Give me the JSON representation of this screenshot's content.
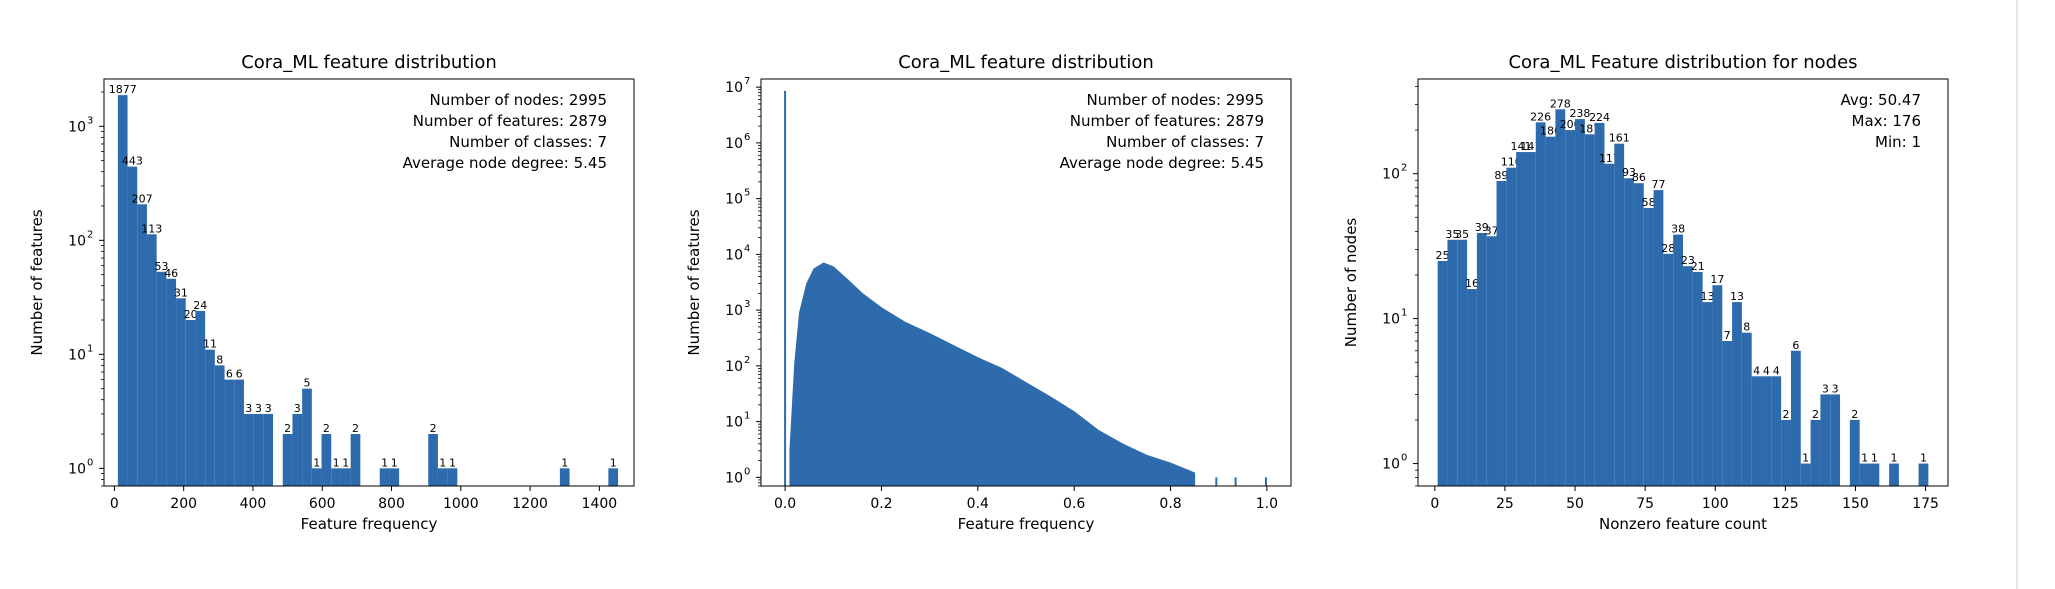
{
  "chart_data": [
    {
      "type": "bar",
      "title": "Cora_ML feature distribution",
      "xlabel": "Feature frequency",
      "ylabel": "Number of features",
      "yscale": "log",
      "xlim": [
        -30,
        1500
      ],
      "ylim": [
        0.7,
        2600
      ],
      "xticks": [
        "0",
        "200",
        "400",
        "600",
        "800",
        "1000",
        "1200",
        "1400"
      ],
      "xtick_values": [
        0,
        200,
        400,
        600,
        800,
        1000,
        1200,
        1400
      ],
      "yticks": [
        "10",
        "10",
        "10",
        "10"
      ],
      "ytick_exponents": [
        "0",
        "1",
        "2",
        "3"
      ],
      "ytick_values": [
        1,
        10,
        100,
        1000
      ],
      "bar_color": "#2e6bad",
      "stats": [
        "Number of nodes: 2995",
        "Number of features: 2879",
        "Number of classes: 7",
        "Average node degree: 5.45"
      ],
      "bars": [
        {
          "x0": 10,
          "x1": 38,
          "value": 1877,
          "label": "1877"
        },
        {
          "x0": 38,
          "x1": 66,
          "value": 443,
          "label": "443"
        },
        {
          "x0": 66,
          "x1": 94,
          "value": 207,
          "label": "207"
        },
        {
          "x0": 94,
          "x1": 122,
          "value": 113,
          "label": "113"
        },
        {
          "x0": 122,
          "x1": 150,
          "value": 53,
          "label": "53"
        },
        {
          "x0": 150,
          "x1": 178,
          "value": 46,
          "label": "46"
        },
        {
          "x0": 178,
          "x1": 206,
          "value": 31,
          "label": "31"
        },
        {
          "x0": 206,
          "x1": 234,
          "value": 20,
          "label": "20"
        },
        {
          "x0": 234,
          "x1": 262,
          "value": 24,
          "label": "24"
        },
        {
          "x0": 262,
          "x1": 290,
          "value": 11,
          "label": "11"
        },
        {
          "x0": 290,
          "x1": 318,
          "value": 8,
          "label": "8"
        },
        {
          "x0": 318,
          "x1": 346,
          "value": 6,
          "label": "6"
        },
        {
          "x0": 346,
          "x1": 374,
          "value": 6,
          "label": "6"
        },
        {
          "x0": 374,
          "x1": 402,
          "value": 3,
          "label": "3"
        },
        {
          "x0": 402,
          "x1": 430,
          "value": 3,
          "label": "3"
        },
        {
          "x0": 430,
          "x1": 458,
          "value": 3,
          "label": "3"
        },
        {
          "x0": 486,
          "x1": 514,
          "value": 2,
          "label": "2"
        },
        {
          "x0": 514,
          "x1": 542,
          "value": 3,
          "label": "3"
        },
        {
          "x0": 542,
          "x1": 570,
          "value": 5,
          "label": "5"
        },
        {
          "x0": 570,
          "x1": 598,
          "value": 1,
          "label": "1"
        },
        {
          "x0": 598,
          "x1": 626,
          "value": 2,
          "label": "2"
        },
        {
          "x0": 626,
          "x1": 654,
          "value": 1,
          "label": "1"
        },
        {
          "x0": 654,
          "x1": 682,
          "value": 1,
          "label": "1"
        },
        {
          "x0": 682,
          "x1": 710,
          "value": 2,
          "label": "2"
        },
        {
          "x0": 766,
          "x1": 794,
          "value": 1,
          "label": "1"
        },
        {
          "x0": 794,
          "x1": 822,
          "value": 1,
          "label": "1"
        },
        {
          "x0": 906,
          "x1": 934,
          "value": 2,
          "label": "2"
        },
        {
          "x0": 934,
          "x1": 962,
          "value": 1,
          "label": "1"
        },
        {
          "x0": 962,
          "x1": 990,
          "value": 1,
          "label": "1"
        },
        {
          "x0": 1286,
          "x1": 1314,
          "value": 1,
          "label": "1"
        },
        {
          "x0": 1426,
          "x1": 1454,
          "value": 1,
          "label": "1"
        }
      ]
    },
    {
      "type": "bar",
      "title": "Cora_ML feature distribution",
      "xlabel": "Feature frequency",
      "ylabel": "Number of features",
      "yscale": "log",
      "xlim": [
        -0.05,
        1.05
      ],
      "ylim": [
        0.7,
        14000000
      ],
      "xticks": [
        "0.0",
        "0.2",
        "0.4",
        "0.6",
        "0.8",
        "1.0"
      ],
      "xtick_values": [
        0,
        0.2,
        0.4,
        0.6,
        0.8,
        1.0
      ],
      "yticks": [
        "10",
        "10",
        "10",
        "10",
        "10",
        "10",
        "10",
        "10"
      ],
      "ytick_exponents": [
        "0",
        "1",
        "2",
        "3",
        "4",
        "5",
        "6",
        "7"
      ],
      "ytick_values": [
        1,
        10,
        100,
        1000,
        10000,
        100000,
        1000000,
        10000000
      ],
      "bar_color": "#2e6bad",
      "stats": [
        "Number of nodes: 2995",
        "Number of features: 2879",
        "Number of classes: 7",
        "Average node degree: 5.45"
      ],
      "spike": {
        "x": 0.0,
        "value": 8600000
      },
      "curve": [
        {
          "x": 0.01,
          "value": 3
        },
        {
          "x": 0.02,
          "value": 110
        },
        {
          "x": 0.03,
          "value": 900
        },
        {
          "x": 0.045,
          "value": 3000
        },
        {
          "x": 0.06,
          "value": 5500
        },
        {
          "x": 0.08,
          "value": 7000
        },
        {
          "x": 0.1,
          "value": 6000
        },
        {
          "x": 0.13,
          "value": 3500
        },
        {
          "x": 0.16,
          "value": 2000
        },
        {
          "x": 0.2,
          "value": 1100
        },
        {
          "x": 0.25,
          "value": 600
        },
        {
          "x": 0.3,
          "value": 380
        },
        {
          "x": 0.35,
          "value": 230
        },
        {
          "x": 0.4,
          "value": 140
        },
        {
          "x": 0.45,
          "value": 90
        },
        {
          "x": 0.5,
          "value": 50
        },
        {
          "x": 0.55,
          "value": 28
        },
        {
          "x": 0.6,
          "value": 15
        },
        {
          "x": 0.65,
          "value": 7
        },
        {
          "x": 0.7,
          "value": 4
        },
        {
          "x": 0.75,
          "value": 2.5
        },
        {
          "x": 0.8,
          "value": 1.8
        },
        {
          "x": 0.85,
          "value": 1.2
        }
      ],
      "tail_bars": [
        {
          "x": 0.895,
          "value": 1
        },
        {
          "x": 0.935,
          "value": 1
        },
        {
          "x": 0.998,
          "value": 1
        }
      ]
    },
    {
      "type": "bar",
      "title": "Cora_ML Feature distribution for nodes",
      "xlabel": "Nonzero feature count",
      "ylabel": "Number of nodes",
      "yscale": "log",
      "xlim": [
        -6,
        183
      ],
      "ylim": [
        0.7,
        450
      ],
      "xticks": [
        "0",
        "25",
        "50",
        "75",
        "100",
        "125",
        "150",
        "175"
      ],
      "xtick_values": [
        0,
        25,
        50,
        75,
        100,
        125,
        150,
        175
      ],
      "yticks": [
        "10",
        "10",
        "10"
      ],
      "ytick_exponents": [
        "0",
        "1",
        "2"
      ],
      "ytick_values": [
        1,
        10,
        100
      ],
      "bar_color": "#2e6bad",
      "stats": [
        "Avg: 50.47",
        "Max: 176",
        "Min: 1"
      ],
      "bars": [
        {
          "x0": 1,
          "x1": 4.5,
          "value": 25,
          "label": "25"
        },
        {
          "x0": 4.5,
          "x1": 8,
          "value": 35,
          "label": "35"
        },
        {
          "x0": 8,
          "x1": 11.5,
          "value": 35,
          "label": "35"
        },
        {
          "x0": 11.5,
          "x1": 15,
          "value": 16,
          "label": "16"
        },
        {
          "x0": 15,
          "x1": 18.5,
          "value": 39,
          "label": "39"
        },
        {
          "x0": 18.5,
          "x1": 22,
          "value": 37,
          "label": "37"
        },
        {
          "x0": 22,
          "x1": 25.5,
          "value": 89,
          "label": "89"
        },
        {
          "x0": 25.5,
          "x1": 29,
          "value": 110,
          "label": "110"
        },
        {
          "x0": 29,
          "x1": 32.5,
          "value": 141,
          "label": "141"
        },
        {
          "x0": 32.5,
          "x1": 36,
          "value": 141,
          "label": "141"
        },
        {
          "x0": 36,
          "x1": 39.5,
          "value": 226,
          "label": "226"
        },
        {
          "x0": 39.5,
          "x1": 43,
          "value": 180,
          "label": "180"
        },
        {
          "x0": 43,
          "x1": 46.5,
          "value": 278,
          "label": "278"
        },
        {
          "x0": 46.5,
          "x1": 50,
          "value": 200,
          "label": "200"
        },
        {
          "x0": 50,
          "x1": 53.5,
          "value": 238,
          "label": "238"
        },
        {
          "x0": 53.5,
          "x1": 57,
          "value": 187,
          "label": "187"
        },
        {
          "x0": 57,
          "x1": 60.5,
          "value": 224,
          "label": "224"
        },
        {
          "x0": 60.5,
          "x1": 64,
          "value": 117,
          "label": "117"
        },
        {
          "x0": 64,
          "x1": 67.5,
          "value": 161,
          "label": "161"
        },
        {
          "x0": 67.5,
          "x1": 71,
          "value": 93,
          "label": "93"
        },
        {
          "x0": 71,
          "x1": 74.5,
          "value": 86,
          "label": "86"
        },
        {
          "x0": 74.5,
          "x1": 78,
          "value": 58,
          "label": "58"
        },
        {
          "x0": 78,
          "x1": 81.5,
          "value": 77,
          "label": "77"
        },
        {
          "x0": 81.5,
          "x1": 85,
          "value": 28,
          "label": "28"
        },
        {
          "x0": 85,
          "x1": 88.5,
          "value": 38,
          "label": "38"
        },
        {
          "x0": 88.5,
          "x1": 92,
          "value": 23,
          "label": "23"
        },
        {
          "x0": 92,
          "x1": 95.5,
          "value": 21,
          "label": "21"
        },
        {
          "x0": 95.5,
          "x1": 99,
          "value": 13,
          "label": "13"
        },
        {
          "x0": 99,
          "x1": 102.5,
          "value": 17,
          "label": "17"
        },
        {
          "x0": 102.5,
          "x1": 106,
          "value": 7,
          "label": "7"
        },
        {
          "x0": 106,
          "x1": 109.5,
          "value": 13,
          "label": "13"
        },
        {
          "x0": 109.5,
          "x1": 113,
          "value": 8,
          "label": "8"
        },
        {
          "x0": 113,
          "x1": 116.5,
          "value": 4,
          "label": "4"
        },
        {
          "x0": 116.5,
          "x1": 120,
          "value": 4,
          "label": "4"
        },
        {
          "x0": 120,
          "x1": 123.5,
          "value": 4,
          "label": "4"
        },
        {
          "x0": 123.5,
          "x1": 127,
          "value": 2,
          "label": "2"
        },
        {
          "x0": 127,
          "x1": 130.5,
          "value": 6,
          "label": "6"
        },
        {
          "x0": 130.5,
          "x1": 134,
          "value": 1,
          "label": "1"
        },
        {
          "x0": 134,
          "x1": 137.5,
          "value": 2,
          "label": "2"
        },
        {
          "x0": 137.5,
          "x1": 141,
          "value": 3,
          "label": "3"
        },
        {
          "x0": 141,
          "x1": 144.5,
          "value": 3,
          "label": "3"
        },
        {
          "x0": 148,
          "x1": 151.5,
          "value": 2,
          "label": "2"
        },
        {
          "x0": 151.5,
          "x1": 155,
          "value": 1,
          "label": "1"
        },
        {
          "x0": 155,
          "x1": 158.5,
          "value": 1,
          "label": "1"
        },
        {
          "x0": 162,
          "x1": 165.5,
          "value": 1,
          "label": "1"
        },
        {
          "x0": 172.5,
          "x1": 176,
          "value": 1,
          "label": "1"
        }
      ]
    }
  ]
}
